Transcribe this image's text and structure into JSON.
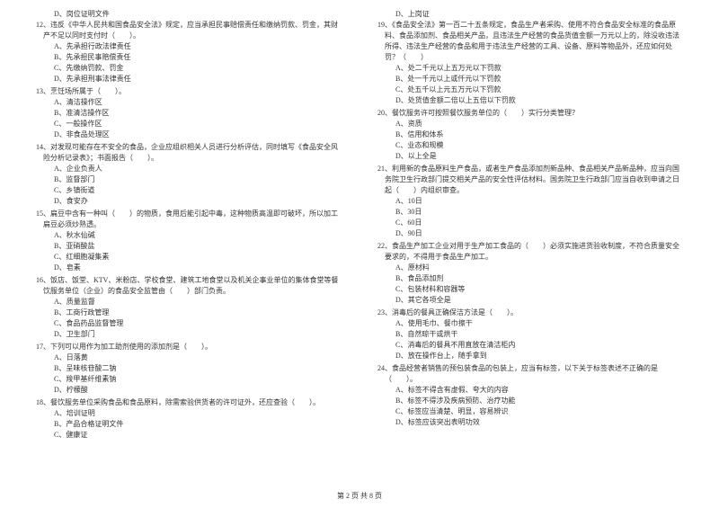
{
  "page_footer": "第 2 页 共 8 页",
  "left_column": {
    "q11_d": "D、岗位证明文件",
    "q12": {
      "text": "12、违反《中华人民共和国食品安全法》规定，应当承担民事赔偿责任和缴纳罚款、罚金，其财产不足以同时支付时（　　）。",
      "a": "A、先承担行政法律责任",
      "b": "B、先承担民事赔偿责任",
      "c": "C、先缴纳罚款、罚金",
      "d": "D、先承担刑事法律责任"
    },
    "q13": {
      "text": "13、烹饪场所属于（　　）。",
      "a": "A、清洁操作区",
      "b": "B、准清洁操作区",
      "c": "C、一般操作区",
      "d": "D、非食品处理区"
    },
    "q14": {
      "text": "14、对发现可能存在不安全的食品，企业应组织相关人员进行分析评估，同时填写《食品安全风险分析记录表》；书面报告（　　）。",
      "a": "A、企业负责人",
      "b": "B、监督部门",
      "c": "C、乡镇街道",
      "d": "D、食安办"
    },
    "q15": {
      "text": "15、扁豆中含有一种叫（　　）的物质，食用后能引起中毒，这种物质高温即可破坏，所以加工扁豆必须炒熟透。",
      "a": "A、秋水仙碱",
      "b": "B、亚硝酸盐",
      "c": "C、红细胞凝集素",
      "d": "D、皂素"
    },
    "q16": {
      "text": "16、饭店、饭堂、KTV、米粉店、学校食堂、建筑工地食堂以及机关企事业单位的集体食堂等餐饮服务单位（企业）的食品安全监管由（　　）部门负责。",
      "a": "A、质量监督",
      "b": "B、工商行政管理",
      "c": "C、食品药品监督管理",
      "d": "D、卫生部门"
    },
    "q17": {
      "text": "17、下列可以用作为加工助剂使用的添加剂是（　　）。",
      "a": "A、日落黄",
      "b": "B、呈味核苷酸二钠",
      "c": "C、羧甲基纤维素钠",
      "d": "D、柠檬酸"
    },
    "q18": {
      "text": "18、餐饮服务单位采购食品和食品原料，除需索验供货者的许可证外，还应查验（　　）。",
      "a": "A、培训证明",
      "b": "B、产品合格证明文件",
      "c": "C、健康证"
    }
  },
  "right_column": {
    "q18_d": "D、上岗证",
    "q19": {
      "text": "19、《食品安全法》第一百二十五条规定，食品生产者采购、使用不符合食品安全标准的食品原料、食品添加剂、食品相关产品，且违法生产经营的食品货值金额一万元以上的，除没收违法所得、违法生产经营的食品和用于违法生产经营的工具、设备、原料等物品外，还应如何处罚？（　　）",
      "a": "A、处二千元以上五万元以下罚款",
      "b": "B、处一千元以上或仟元以下罚款",
      "c": "C、处五千以上元五万元以下罚款",
      "d": "D、处货值金额二倍以上五倍以下罚款"
    },
    "q20": {
      "text": "20、餐饮服务许可按照餐饮服务单位的（　　）实行分类管理？",
      "a": "A、资质",
      "b": "B、信用和体系",
      "c": "C、业态和规模",
      "d": "D、以上全是"
    },
    "q21": {
      "text": "21、利用新的食品原料生产食品，或者生产食品添加剂新品种、食品相关产品新品种，应当向国务院卫生行政部门提交相关产品的安全性评估材料。国务院卫生行政部门应当自收到申请之日起（　　）内组织审查。",
      "a": "A、10日",
      "b": "B、30日",
      "c": "C、60日",
      "d": "D、90日"
    },
    "q22": {
      "text": "22、食品生产加工企业对用于生产加工食品的（　　）必须实施进货验收制度，不符合质量安全要求的，不得用于食品生产加工。",
      "a": "A、原材料",
      "b": "B、食品添加剂",
      "c": "C、包装材料和容器等",
      "d": "D、其它各项全是"
    },
    "q23": {
      "text": "23、消毒后的餐具正确保洁方法是（　　）。",
      "a": "A、使用毛巾、餐巾擦干",
      "b": "B、自然晾干或烘干",
      "c": "C、消毒后的餐具不用直放在清洁柜内",
      "d": "D、放在操作台上，随手拿到"
    },
    "q24": {
      "text": "24、食品经营者销售的预包装食品的包装上，应当有标签，以下关于标签表述不正确的是（　　）。",
      "a": "A、标签不得含有虚假、夸大的内容",
      "b": "B、标签不得涉及疾病预防、治疗功能",
      "c": "C、标签应当清楚、明显，容易辨识",
      "d": "D、标签应该突出表明功效"
    }
  }
}
